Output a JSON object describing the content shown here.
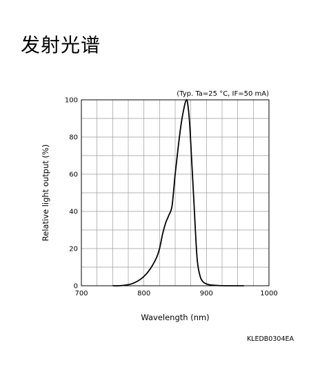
{
  "page": {
    "title": "发射光谱",
    "doc_code": "KLEDB0304EA"
  },
  "chart_data": {
    "type": "line",
    "title": "",
    "condition_note": "(Typ. Ta=25 °C, IF=50 mA)",
    "xlabel": "Wavelength (nm)",
    "ylabel": "Relative light output (%)",
    "xlim": [
      700,
      1000
    ],
    "ylim": [
      0,
      100
    ],
    "x_ticks": [
      700,
      800,
      900,
      1000
    ],
    "y_ticks": [
      0,
      20,
      40,
      60,
      80,
      100
    ],
    "x_minor_step": 25,
    "y_minor_step": 10,
    "grid": true,
    "series": [
      {
        "color": "#000000",
        "x": [
          750,
          760,
          770,
          780,
          790,
          800,
          810,
          820,
          825,
          830,
          835,
          840,
          845,
          850,
          855,
          860,
          865,
          868,
          870,
          873,
          876,
          880,
          885,
          890,
          895,
          900,
          905,
          910,
          920,
          930,
          940,
          950,
          960
        ],
        "y": [
          0,
          0,
          0.3,
          1,
          2.5,
          5,
          9,
          15,
          20,
          28,
          34,
          38,
          43,
          60,
          75,
          88,
          97,
          100,
          98,
          88,
          70,
          45,
          15,
          5,
          2,
          1,
          0.5,
          0.3,
          0.1,
          0,
          0,
          0,
          0
        ]
      }
    ]
  }
}
